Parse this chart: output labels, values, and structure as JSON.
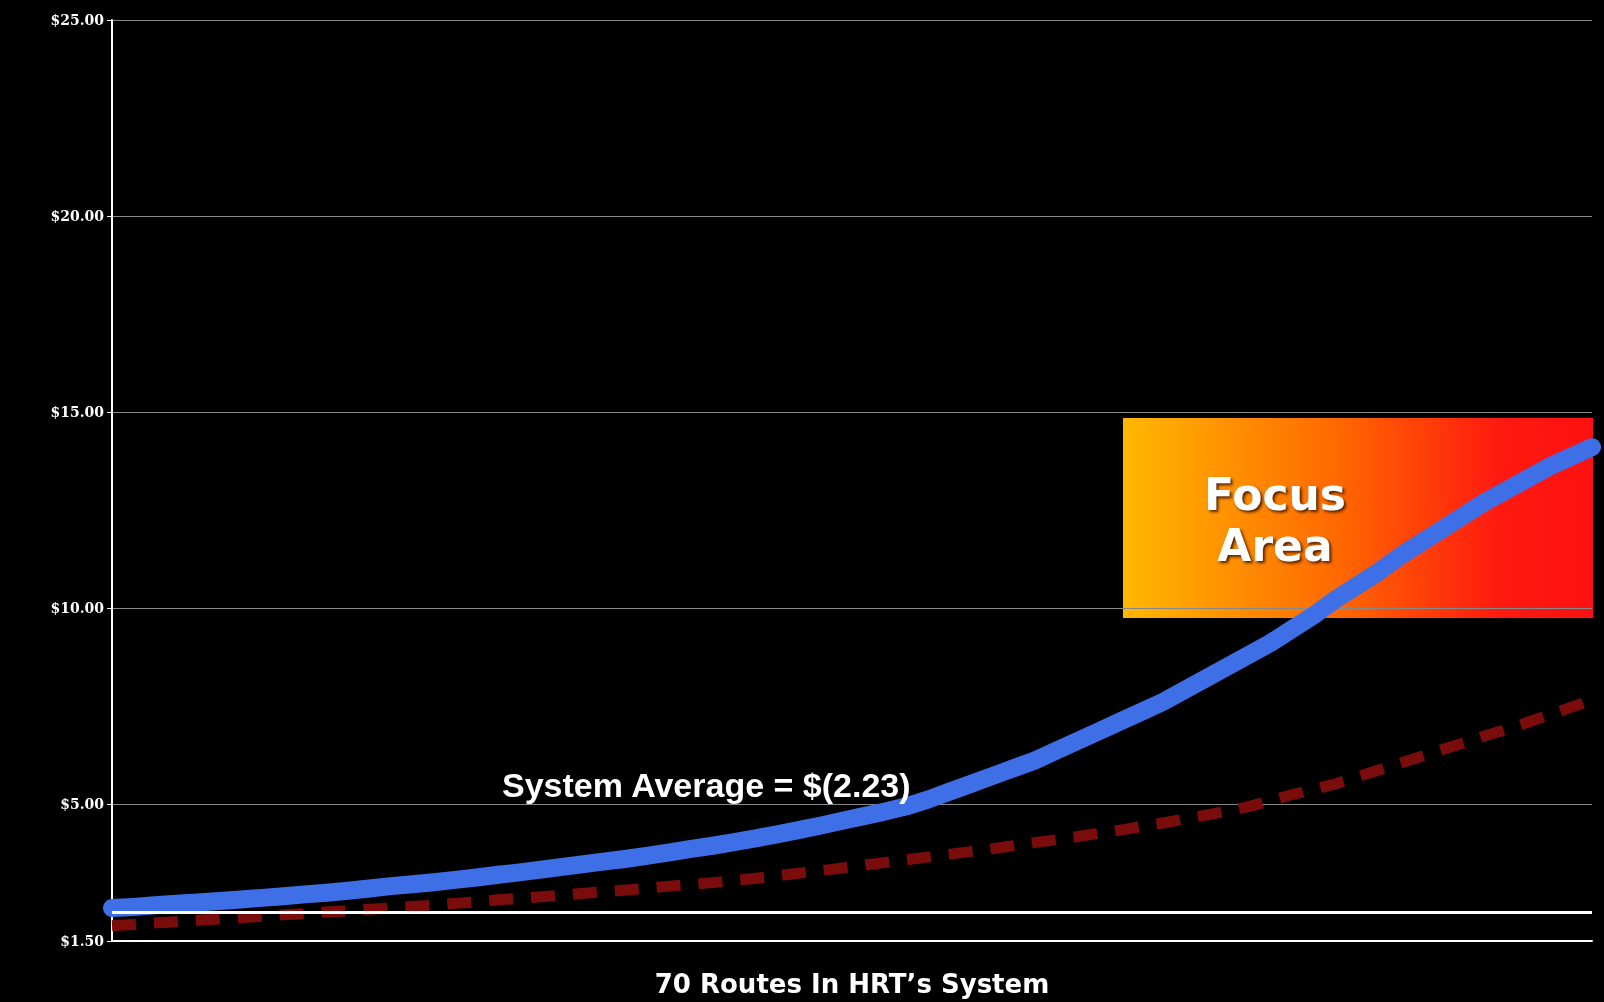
{
  "chart_data": {
    "type": "line",
    "xlabel": "70 Routes In HRT’s System",
    "grid": "y",
    "marker": "none",
    "categories": [
      null,
      null,
      null,
      null,
      null,
      null,
      null,
      null,
      null,
      null,
      null,
      null,
      null,
      null,
      null,
      null,
      null,
      null,
      null,
      null,
      null,
      null,
      null,
      null,
      null,
      null,
      null,
      null,
      null,
      null,
      null,
      null,
      null,
      null,
      null,
      null,
      null,
      null,
      null,
      null,
      null,
      null,
      null,
      null,
      null,
      null,
      null,
      null,
      null,
      null,
      null,
      null,
      null,
      null,
      null,
      null,
      null,
      null,
      null,
      null,
      null,
      null,
      null,
      null,
      null,
      null,
      null,
      null,
      null,
      null
    ],
    "ylim": [
      1.5,
      25
    ],
    "yticks": [
      {
        "value": 1.5,
        "label": "$1.50"
      },
      {
        "value": 5,
        "label": "$5.00"
      },
      {
        "value": 10,
        "label": "$10.00"
      },
      {
        "value": 15,
        "label": "$15.00"
      },
      {
        "value": 20,
        "label": "$20.00"
      },
      {
        "value": 25,
        "label": "$25.00"
      }
    ],
    "series": [
      {
        "color": "#3f6fe6",
        "line_style": "solid",
        "values": [
          2.34,
          2.37,
          2.41,
          2.45,
          2.48,
          2.52,
          2.56,
          2.6,
          2.64,
          2.69,
          2.73,
          2.78,
          2.84,
          2.9,
          2.95,
          3.0,
          3.06,
          3.12,
          3.19,
          3.25,
          3.32,
          3.39,
          3.46,
          3.53,
          3.6,
          3.68,
          3.76,
          3.85,
          3.93,
          4.02,
          4.12,
          4.22,
          4.33,
          4.44,
          4.56,
          4.68,
          4.8,
          4.93,
          5.1,
          5.3,
          5.5,
          5.7,
          5.9,
          6.1,
          6.35,
          6.6,
          6.85,
          7.1,
          7.35,
          7.6,
          7.9,
          8.2,
          8.5,
          8.8,
          9.1,
          9.45,
          9.8,
          10.2,
          10.55,
          10.9,
          11.3,
          11.65,
          12.0,
          12.35,
          12.7,
          13.0,
          13.3,
          13.6,
          13.85,
          14.1
        ]
      },
      {
        "color": "#7a0c0c",
        "line_style": "dashed",
        "values": [
          1.89,
          1.92,
          1.96,
          1.99,
          2.03,
          2.06,
          2.1,
          2.13,
          2.17,
          2.2,
          2.24,
          2.27,
          2.31,
          2.34,
          2.38,
          2.41,
          2.46,
          2.5,
          2.55,
          2.59,
          2.63,
          2.67,
          2.72,
          2.76,
          2.8,
          2.85,
          2.9,
          2.94,
          2.99,
          3.04,
          3.1,
          3.16,
          3.23,
          3.29,
          3.36,
          3.43,
          3.5,
          3.57,
          3.64,
          3.71,
          3.78,
          3.85,
          3.93,
          4.01,
          4.08,
          4.16,
          4.25,
          4.33,
          4.42,
          4.51,
          4.61,
          4.71,
          4.82,
          4.93,
          5.08,
          5.23,
          5.37,
          5.5,
          5.68,
          5.85,
          6.03,
          6.2,
          6.38,
          6.55,
          6.73,
          6.9,
          7.08,
          7.27,
          7.46,
          7.65
        ]
      }
    ],
    "ref_lines": [
      {
        "axis": "y",
        "value": 2.23,
        "label": "System Average = $(2.23)",
        "color": "#ffffff"
      }
    ],
    "annotations": [
      "Focus Area"
    ]
  }
}
